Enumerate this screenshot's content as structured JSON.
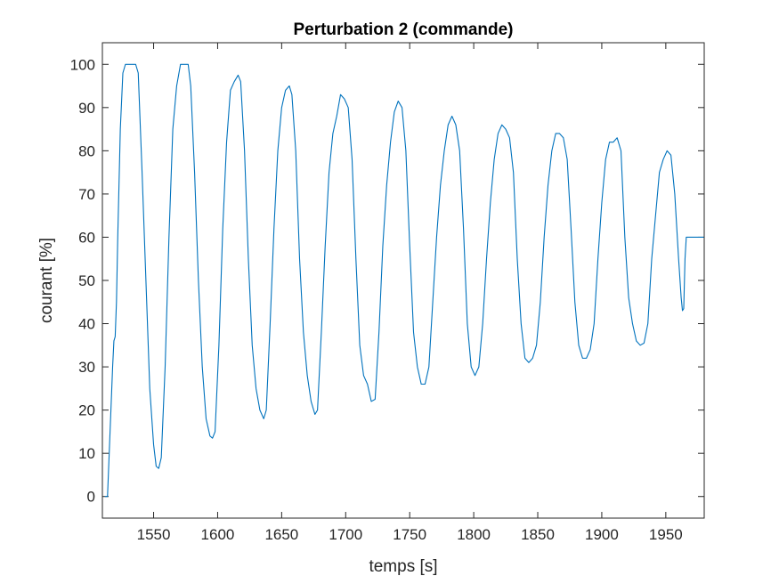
{
  "chart_data": {
    "type": "line",
    "title": "Perturbation 2 (commande)",
    "xlabel": "temps [s]",
    "ylabel": "courant [%]",
    "xlim": [
      1510,
      1980
    ],
    "ylim": [
      -5,
      105
    ],
    "xticks": [
      1550,
      1600,
      1650,
      1700,
      1750,
      1800,
      1850,
      1900,
      1950
    ],
    "yticks": [
      0,
      10,
      20,
      30,
      40,
      50,
      60,
      70,
      80,
      90,
      100
    ],
    "grid": false,
    "line_color": "#0072BD",
    "series": [
      {
        "x": [
          1512,
          1514,
          1516,
          1518,
          1519,
          1520,
          1521,
          1522,
          1524,
          1526,
          1528,
          1530,
          1534,
          1536,
          1538,
          1541,
          1544,
          1547,
          1550,
          1552,
          1554,
          1556,
          1559,
          1562,
          1565,
          1568,
          1571,
          1573,
          1577,
          1579,
          1582,
          1585,
          1588,
          1591,
          1594,
          1596,
          1598,
          1601,
          1604,
          1607,
          1610,
          1613,
          1616,
          1618,
          1621,
          1624,
          1627,
          1630,
          1633,
          1636,
          1638,
          1641,
          1644,
          1647,
          1650,
          1653,
          1656,
          1658,
          1661,
          1664,
          1667,
          1670,
          1673,
          1676,
          1678,
          1681,
          1684,
          1687,
          1690,
          1693,
          1696,
          1699,
          1702,
          1705,
          1708,
          1711,
          1714,
          1717,
          1720,
          1723,
          1726,
          1729,
          1732,
          1735,
          1738,
          1741,
          1744,
          1747,
          1750,
          1753,
          1756,
          1759,
          1762,
          1765,
          1768,
          1771,
          1774,
          1777,
          1780,
          1783,
          1786,
          1789,
          1792,
          1795,
          1798,
          1801,
          1804,
          1807,
          1810,
          1813,
          1816,
          1819,
          1822,
          1825,
          1828,
          1831,
          1834,
          1837,
          1840,
          1843,
          1846,
          1849,
          1852,
          1855,
          1858,
          1861,
          1864,
          1867,
          1870,
          1873,
          1876,
          1879,
          1882,
          1885,
          1888,
          1891,
          1894,
          1897,
          1900,
          1903,
          1906,
          1909,
          1912,
          1915,
          1918,
          1921,
          1924,
          1927,
          1930,
          1933,
          1936,
          1939,
          1942,
          1945,
          1948,
          1951,
          1954,
          1957,
          1960,
          1962,
          1963,
          1964,
          1965,
          1966,
          1967,
          1970,
          1975,
          1980
        ],
        "y": [
          0,
          0,
          15,
          30,
          36,
          37,
          45,
          60,
          85,
          98,
          100,
          100,
          100,
          100,
          98,
          75,
          50,
          25,
          12,
          7,
          6.5,
          9,
          30,
          60,
          85,
          95,
          100,
          100,
          100,
          95,
          75,
          50,
          30,
          18,
          14,
          13.5,
          15,
          35,
          62,
          82,
          94,
          96,
          97.5,
          96,
          80,
          55,
          35,
          25,
          20,
          18,
          20,
          40,
          62,
          80,
          90,
          94,
          95,
          93,
          80,
          55,
          38,
          28,
          22,
          19,
          20,
          38,
          58,
          75,
          84,
          88,
          93,
          92,
          90,
          78,
          55,
          35,
          28,
          26,
          22,
          22.5,
          38,
          58,
          72,
          82,
          89,
          91.5,
          90,
          80,
          58,
          38,
          30,
          26,
          26,
          30,
          45,
          60,
          72,
          80,
          86,
          88,
          86,
          80,
          62,
          40,
          30,
          28,
          30,
          40,
          55,
          68,
          78,
          84,
          86,
          85,
          83,
          75,
          55,
          40,
          32,
          31,
          32,
          35,
          45,
          60,
          72,
          80,
          84,
          84,
          83,
          78,
          62,
          45,
          35,
          32,
          32,
          34,
          40,
          55,
          68,
          78,
          82,
          82,
          83,
          80,
          60,
          46,
          40,
          36,
          35,
          35.5,
          40,
          55,
          65,
          75,
          78,
          80,
          79,
          70,
          55,
          46,
          43,
          43.5,
          55,
          60,
          60,
          60,
          60,
          60
        ]
      }
    ]
  }
}
